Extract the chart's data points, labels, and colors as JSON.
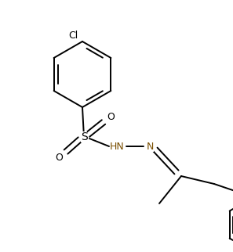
{
  "background_color": "#ffffff",
  "line_color": "#000000",
  "label_color_Cl": "#000000",
  "label_color_S": "#000000",
  "label_color_O": "#000000",
  "label_color_N": "#7a4f00",
  "line_width": 1.4,
  "figsize": [
    2.97,
    3.22
  ],
  "dpi": 100,
  "xlim": [
    0,
    297
  ],
  "ylim": [
    0,
    322
  ]
}
